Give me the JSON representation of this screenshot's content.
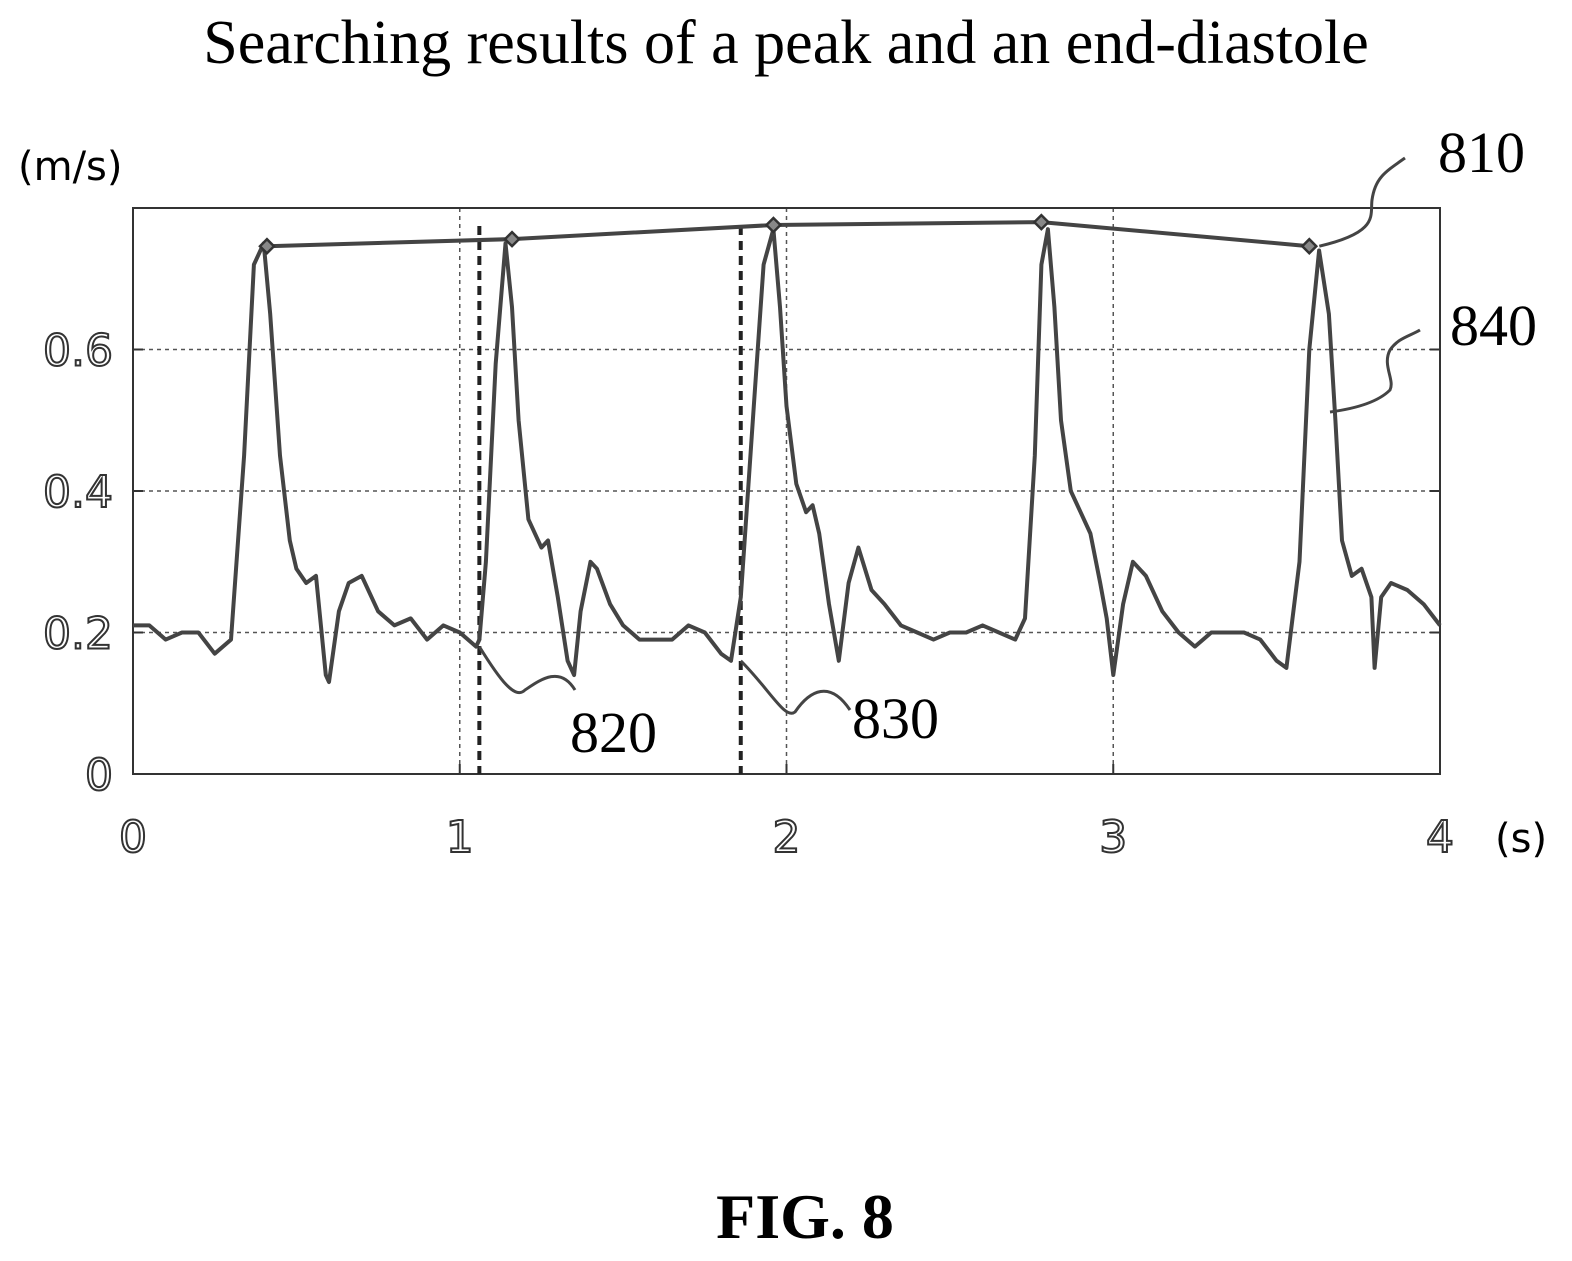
{
  "figure": {
    "title": "Searching results of a peak and an end-diastole",
    "caption": "FIG. 8"
  },
  "chart_data": {
    "type": "line",
    "title": "Searching results of a peak and an end-diastole",
    "ylabel": "(m/s)",
    "xlabel": "(s)",
    "xlim": [
      0,
      4
    ],
    "ylim": [
      0,
      0.8
    ],
    "x_ticks": [
      "0",
      "1",
      "2",
      "3",
      "4"
    ],
    "y_ticks": [
      "0",
      "0.2",
      "0.4",
      "0.6"
    ],
    "grid": true,
    "series": [
      {
        "name": "840",
        "role": "velocity waveform",
        "x": [
          0,
          0.05,
          0.1,
          0.15,
          0.2,
          0.25,
          0.3,
          0.34,
          0.37,
          0.4,
          0.42,
          0.45,
          0.48,
          0.5,
          0.53,
          0.56,
          0.59,
          0.6,
          0.63,
          0.66,
          0.7,
          0.75,
          0.8,
          0.85,
          0.9,
          0.95,
          1.0,
          1.05,
          1.06,
          1.08,
          1.11,
          1.14,
          1.16,
          1.18,
          1.21,
          1.25,
          1.27,
          1.3,
          1.33,
          1.35,
          1.37,
          1.4,
          1.42,
          1.46,
          1.5,
          1.55,
          1.6,
          1.65,
          1.7,
          1.75,
          1.8,
          1.83,
          1.86,
          1.9,
          1.93,
          1.96,
          1.98,
          2.0,
          2.03,
          2.06,
          2.08,
          2.1,
          2.13,
          2.16,
          2.19,
          2.22,
          2.26,
          2.3,
          2.35,
          2.4,
          2.45,
          2.5,
          2.55,
          2.6,
          2.65,
          2.7,
          2.73,
          2.76,
          2.78,
          2.8,
          2.82,
          2.84,
          2.87,
          2.9,
          2.93,
          2.96,
          2.98,
          3.0,
          3.03,
          3.06,
          3.1,
          3.15,
          3.2,
          3.25,
          3.3,
          3.35,
          3.4,
          3.45,
          3.5,
          3.53,
          3.57,
          3.6,
          3.63,
          3.66,
          3.68,
          3.7,
          3.73,
          3.76,
          3.79,
          3.8,
          3.82,
          3.85,
          3.9,
          3.95,
          4.0
        ],
        "y": [
          0.21,
          0.21,
          0.19,
          0.2,
          0.2,
          0.17,
          0.19,
          0.45,
          0.72,
          0.75,
          0.65,
          0.45,
          0.33,
          0.29,
          0.27,
          0.28,
          0.14,
          0.13,
          0.23,
          0.27,
          0.28,
          0.23,
          0.21,
          0.22,
          0.19,
          0.21,
          0.2,
          0.18,
          0.19,
          0.3,
          0.58,
          0.75,
          0.66,
          0.5,
          0.36,
          0.32,
          0.33,
          0.25,
          0.16,
          0.14,
          0.23,
          0.3,
          0.29,
          0.24,
          0.21,
          0.19,
          0.19,
          0.19,
          0.21,
          0.2,
          0.17,
          0.16,
          0.25,
          0.52,
          0.72,
          0.77,
          0.66,
          0.52,
          0.41,
          0.37,
          0.38,
          0.34,
          0.24,
          0.16,
          0.27,
          0.32,
          0.26,
          0.24,
          0.21,
          0.2,
          0.19,
          0.2,
          0.2,
          0.21,
          0.2,
          0.19,
          0.22,
          0.45,
          0.72,
          0.77,
          0.66,
          0.5,
          0.4,
          0.37,
          0.34,
          0.27,
          0.22,
          0.14,
          0.24,
          0.3,
          0.28,
          0.23,
          0.2,
          0.18,
          0.2,
          0.2,
          0.2,
          0.19,
          0.16,
          0.15,
          0.3,
          0.6,
          0.74,
          0.65,
          0.5,
          0.33,
          0.28,
          0.29,
          0.25,
          0.15,
          0.25,
          0.27,
          0.26,
          0.24,
          0.21
        ]
      },
      {
        "name": "810",
        "role": "detected peaks",
        "x": [
          0.41,
          1.16,
          1.96,
          2.78,
          3.6
        ],
        "y": [
          0.746,
          0.756,
          0.776,
          0.78,
          0.746
        ]
      }
    ],
    "vertical_markers": [
      {
        "name": "820",
        "x": 1.06
      },
      {
        "name": "830",
        "x": 1.86
      }
    ],
    "annotations": [
      "810",
      "820",
      "830",
      "840"
    ]
  }
}
